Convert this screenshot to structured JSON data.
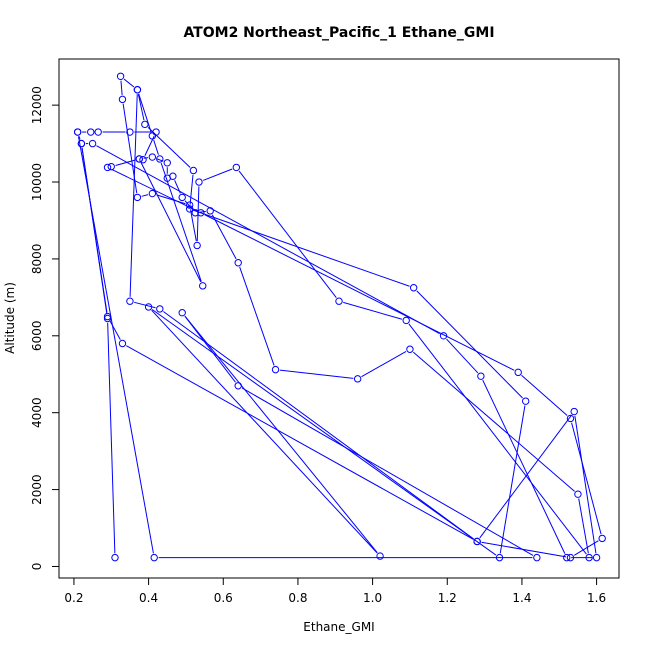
{
  "chart_data": {
    "type": "line",
    "title": "ATOM2 Northeast_Pacific_1 Ethane_GMI",
    "xlabel": "Ethane_GMI",
    "ylabel": "Altitude (m)",
    "xlim": [
      0.16,
      1.66
    ],
    "ylim": [
      -300,
      13200
    ],
    "x_ticks": [
      0.2,
      0.4,
      0.6,
      0.8,
      1.0,
      1.2,
      1.4,
      1.6
    ],
    "x_tick_labels": [
      "0.2",
      "0.4",
      "0.6",
      "0.8",
      "1.0",
      "1.2",
      "1.4",
      "1.6"
    ],
    "y_ticks": [
      0,
      2000,
      4000,
      6000,
      8000,
      10000,
      12000
    ],
    "y_tick_labels": [
      "0",
      "2000",
      "4000",
      "6000",
      "8000",
      "10000",
      "12000"
    ],
    "grid": false,
    "series": [
      {
        "color": "#0000ff",
        "marker": "open-circle",
        "points": [
          [
            0.31,
            230
          ],
          [
            0.29,
            6450
          ],
          [
            0.22,
            11000
          ],
          [
            0.21,
            11300
          ],
          [
            0.245,
            11300
          ],
          [
            0.265,
            11300
          ],
          [
            0.35,
            11300
          ],
          [
            0.42,
            11300
          ],
          [
            0.385,
            10580
          ],
          [
            0.375,
            10600
          ],
          [
            0.41,
            10650
          ],
          [
            0.45,
            10500
          ],
          [
            0.45,
            10100
          ],
          [
            0.465,
            10150
          ],
          [
            0.49,
            9600
          ],
          [
            0.525,
            9200
          ],
          [
            0.565,
            9250
          ],
          [
            0.64,
            7900
          ],
          [
            0.74,
            5120
          ],
          [
            0.96,
            4880
          ],
          [
            1.1,
            5650
          ],
          [
            1.55,
            1880
          ],
          [
            1.58,
            230
          ],
          [
            1.09,
            6400
          ],
          [
            0.91,
            6900
          ],
          [
            0.635,
            10380
          ],
          [
            0.535,
            10000
          ],
          [
            0.53,
            8350
          ],
          [
            0.51,
            9400
          ],
          [
            0.41,
            9700
          ],
          [
            0.37,
            9600
          ],
          [
            0.33,
            12150
          ],
          [
            0.325,
            12750
          ],
          [
            0.37,
            12400
          ],
          [
            0.41,
            11200
          ],
          [
            0.43,
            10600
          ],
          [
            0.545,
            7300
          ],
          [
            0.375,
            10600
          ],
          [
            0.3,
            10400
          ],
          [
            0.29,
            10380
          ],
          [
            0.54,
            9200
          ],
          [
            1.39,
            5050
          ],
          [
            1.53,
            3850
          ],
          [
            1.615,
            730
          ],
          [
            1.53,
            230
          ],
          [
            1.28,
            650
          ],
          [
            0.33,
            5800
          ],
          [
            0.29,
            6500
          ],
          [
            0.22,
            11000
          ],
          [
            0.25,
            11000
          ],
          [
            1.19,
            6000
          ],
          [
            1.29,
            4950
          ],
          [
            1.52,
            230
          ],
          [
            1.6,
            230
          ],
          [
            1.54,
            4030
          ],
          [
            1.28,
            650
          ],
          [
            0.43,
            6700
          ],
          [
            0.35,
            6900
          ],
          [
            0.37,
            12400
          ],
          [
            0.39,
            11500
          ],
          [
            0.52,
            10300
          ],
          [
            0.51,
            9300
          ],
          [
            1.11,
            7250
          ],
          [
            1.41,
            4300
          ],
          [
            1.34,
            230
          ],
          [
            0.4,
            6750
          ],
          [
            1.02,
            270
          ],
          [
            0.49,
            6600
          ],
          [
            0.64,
            4700
          ],
          [
            1.44,
            230
          ],
          [
            0.415,
            230
          ],
          [
            0.21,
            11300
          ]
        ]
      }
    ]
  }
}
